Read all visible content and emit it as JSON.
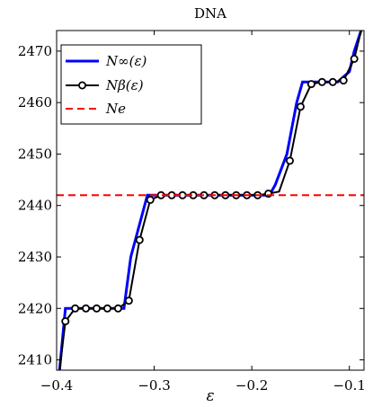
{
  "chart_data": {
    "type": "line",
    "title": "DNA",
    "xlabel": "ε",
    "ylabel": "",
    "xlim": [
      -0.4,
      -0.085
    ],
    "ylim": [
      2408,
      2474
    ],
    "xticks": [
      -0.4,
      -0.3,
      -0.2,
      -0.1
    ],
    "xtick_labels": [
      "−0.4",
      "−0.3",
      "−0.2",
      "−0.1"
    ],
    "yticks": [
      2410,
      2420,
      2430,
      2440,
      2450,
      2460,
      2470
    ],
    "ytick_labels": [
      "2410",
      "2420",
      "2430",
      "2440",
      "2450",
      "2460",
      "2470"
    ],
    "grid": false,
    "legend_position": "top-left",
    "legend": [
      "N∞(ε)",
      "Nβ(ε)",
      "Ne"
    ],
    "series": [
      {
        "name": "N∞(ε)",
        "color": "#0000ff",
        "style": "solid",
        "x": [
          -0.397,
          -0.391,
          -0.331,
          -0.324,
          -0.307,
          -0.302,
          -0.182,
          -0.176,
          -0.164,
          -0.154,
          -0.148,
          -0.14,
          -0.112,
          -0.106,
          -0.1,
          -0.095,
          -0.088
        ],
        "y": [
          2408,
          2420,
          2420,
          2430,
          2442,
          2442,
          2442,
          2444,
          2450,
          2460,
          2464,
          2464,
          2464,
          2465,
          2466,
          2470,
          2474
        ]
      },
      {
        "name": "Nβ(ε)",
        "color": "#000000",
        "style": "solid-markers",
        "x": [
          -0.397,
          -0.391,
          -0.381,
          -0.37,
          -0.359,
          -0.348,
          -0.337,
          -0.326,
          -0.315,
          -0.304,
          -0.293,
          -0.282,
          -0.271,
          -0.26,
          -0.249,
          -0.238,
          -0.227,
          -0.216,
          -0.205,
          -0.194,
          -0.183,
          -0.172,
          -0.161,
          -0.15,
          -0.139,
          -0.128,
          -0.117,
          -0.106,
          -0.095,
          -0.088
        ],
        "y": [
          2408,
          2417.5,
          2420,
          2420,
          2420,
          2420,
          2420,
          2421.5,
          2433.3,
          2441.1,
          2442,
          2442,
          2442,
          2442,
          2442,
          2442,
          2442,
          2442,
          2442,
          2442,
          2442.3,
          2442.7,
          2448.7,
          2459.2,
          2463.6,
          2464,
          2464,
          2464.3,
          2468.5,
          2474
        ],
        "markers": [
          false,
          true,
          true,
          true,
          true,
          true,
          true,
          true,
          true,
          true,
          true,
          true,
          true,
          true,
          true,
          true,
          true,
          true,
          true,
          true,
          true,
          false,
          true,
          true,
          true,
          true,
          true,
          true,
          true,
          false
        ]
      },
      {
        "name": "Ne",
        "color": "#ff0000",
        "style": "dashed",
        "x": [
          -0.4,
          -0.085
        ],
        "y": [
          2442,
          2442
        ]
      }
    ]
  }
}
